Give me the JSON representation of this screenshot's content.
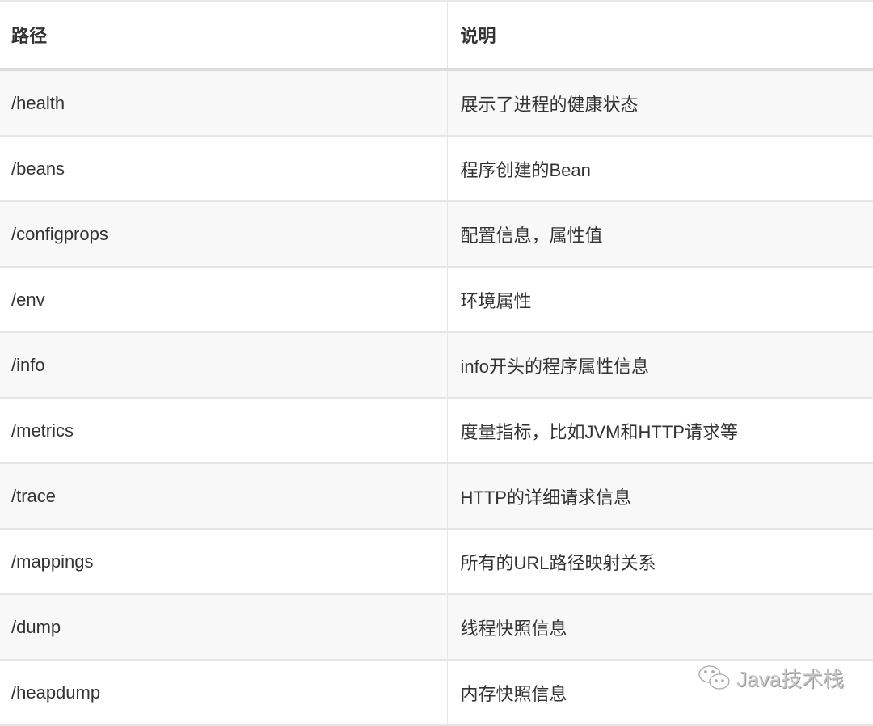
{
  "table": {
    "headers": [
      "路径",
      "说明"
    ],
    "rows": [
      {
        "path": "/health",
        "desc": "展示了进程的健康状态"
      },
      {
        "path": "/beans",
        "desc": "程序创建的Bean"
      },
      {
        "path": "/configprops",
        "desc": "配置信息，属性值"
      },
      {
        "path": "/env",
        "desc": "环境属性"
      },
      {
        "path": "/info",
        "desc": "info开头的程序属性信息"
      },
      {
        "path": "/metrics",
        "desc": "度量指标，比如JVM和HTTP请求等"
      },
      {
        "path": "/trace",
        "desc": "HTTP的详细请求信息"
      },
      {
        "path": "/mappings",
        "desc": "所有的URL路径映射关系"
      },
      {
        "path": "/dump",
        "desc": "线程快照信息"
      },
      {
        "path": "/heapdump",
        "desc": "内存快照信息"
      }
    ]
  },
  "watermark": {
    "icon": "wechat-icon",
    "text": "Java技术栈"
  }
}
